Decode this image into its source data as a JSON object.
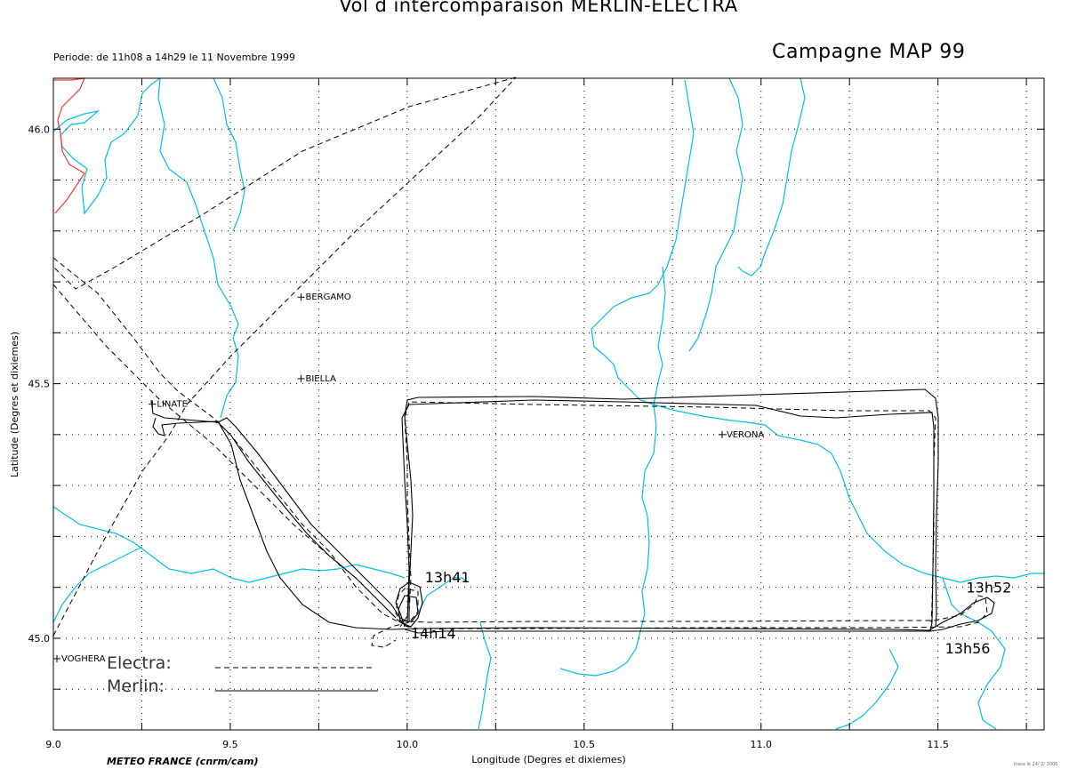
{
  "title": "Vol d intercomparaison MERLIN-ELECTRA",
  "period": "Periode: de 11h08 a 14h29 le 11 Novembre 1999",
  "campaign": "Campagne MAP 99",
  "credit": "METEO FRANCE (cnrm/cam)",
  "stamp": "trace le 24/ 2/ 2000",
  "colors": {
    "river": "#00bfe8",
    "border": "#ff3030",
    "track": "#000000",
    "grid": "#000000"
  },
  "axes": {
    "xlabel": "Longitude (Degres et dixiemes)",
    "ylabel": "Latitude (Degres et dixiemes)",
    "xlim": [
      9.0,
      11.8
    ],
    "ylim": [
      44.82,
      46.1
    ],
    "xticks": [
      "9.0",
      "9.5",
      "10.0",
      "10.5",
      "11.0",
      "11.5"
    ],
    "yticks": [
      "45.0",
      "45.5",
      "46.0"
    ]
  },
  "cities": [
    {
      "name": "BERGAMO",
      "lon": 9.7,
      "lat": 45.67
    },
    {
      "name": "BIELLA",
      "lon": 9.7,
      "lat": 45.51
    },
    {
      "name": "LINATE",
      "lon": 9.28,
      "lat": 45.46
    },
    {
      "name": "VERONA",
      "lon": 10.89,
      "lat": 45.4
    },
    {
      "name": "VOGHERA",
      "lon": 9.01,
      "lat": 44.96
    }
  ],
  "time_labels": [
    {
      "text": "13h41",
      "lon": 10.05,
      "lat": 45.11
    },
    {
      "text": "13h52",
      "lon": 11.58,
      "lat": 45.09
    },
    {
      "text": "13h56",
      "lon": 11.52,
      "lat": 44.97
    },
    {
      "text": "14h14",
      "lon": 10.01,
      "lat": 45.0
    }
  ],
  "legend": [
    {
      "label": "Electra:",
      "style": "dashed"
    },
    {
      "label": "Merlin:",
      "style": "solid"
    }
  ]
}
